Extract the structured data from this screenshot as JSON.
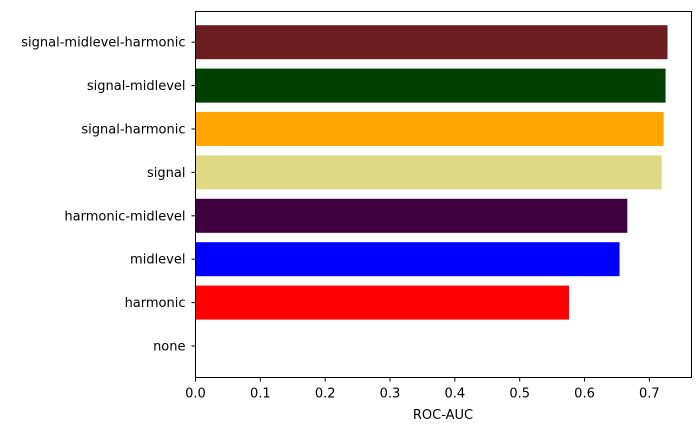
{
  "chart_data": {
    "type": "bar",
    "orientation": "horizontal",
    "title": "",
    "xlabel": "ROC-AUC",
    "ylabel": "",
    "xlim": [
      0,
      0.765
    ],
    "grid": false,
    "legend": "none",
    "x_ticks": [
      0.0,
      0.1,
      0.2,
      0.3,
      0.4,
      0.5,
      0.6,
      0.7
    ],
    "x_tick_labels": [
      "0.0",
      "0.1",
      "0.2",
      "0.3",
      "0.4",
      "0.5",
      "0.6",
      "0.7"
    ],
    "categories": [
      "none",
      "harmonic",
      "midlevel",
      "harmonic-midlevel",
      "signal",
      "signal-harmonic",
      "signal-midlevel",
      "signal-midlevel-harmonic"
    ],
    "values": [
      0.0,
      0.576,
      0.654,
      0.666,
      0.719,
      0.722,
      0.725,
      0.728
    ],
    "colors": [
      "#ffffff",
      "#ff0000",
      "#0000ff",
      "#3f003f",
      "#e0d983",
      "#ffa500",
      "#004000",
      "#6b1d1f"
    ]
  }
}
